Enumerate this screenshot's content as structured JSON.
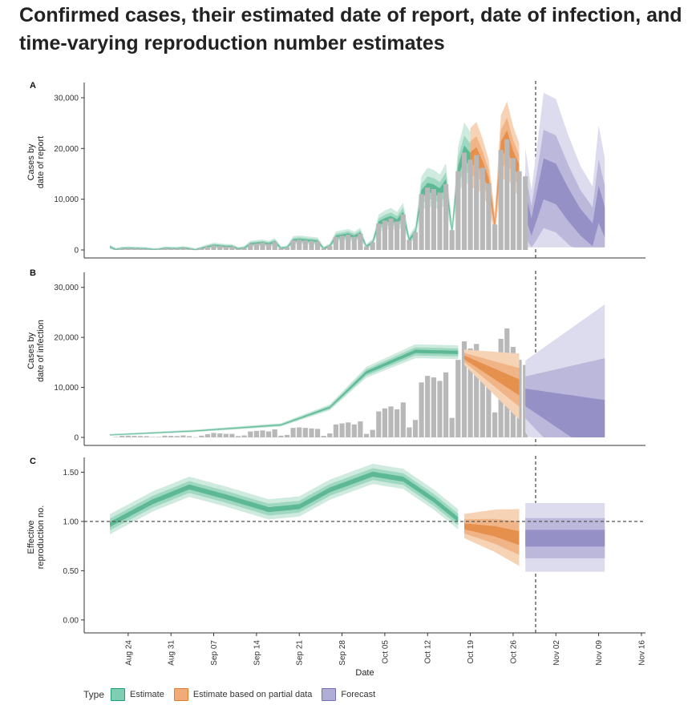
{
  "page": {
    "title": "Confirmed cases, their estimated date of report, date of infection, and time-varying reproduction number estimates"
  },
  "colors": {
    "estimate": "#1b9e77",
    "partial": "#e37b2d",
    "forecast": "#7570b3",
    "bars": "#b8b8b8"
  },
  "legend": {
    "title": "Type",
    "items": [
      {
        "key": "estimate",
        "label": "Estimate"
      },
      {
        "key": "partial",
        "label": "Estimate based on partial data"
      },
      {
        "key": "forecast",
        "label": "Forecast"
      }
    ]
  },
  "chart_data": [
    {
      "id": "A",
      "type": "bar",
      "ylabel": "Cases by date of report",
      "ylim": [
        0,
        33000
      ],
      "yticks": [
        0,
        10000,
        20000,
        30000
      ],
      "ytick_labels": [
        "0",
        "10,000",
        "20,000",
        "30,000"
      ],
      "bars_start_day": 1,
      "bars": [
        100,
        300,
        350,
        300,
        280,
        250,
        100,
        120,
        350,
        300,
        280,
        400,
        250,
        50,
        350,
        650,
        900,
        800,
        700,
        700,
        250,
        400,
        1200,
        1300,
        1400,
        1200,
        1600,
        350,
        500,
        1900,
        2000,
        1900,
        1800,
        1700,
        300,
        800,
        2600,
        2800,
        3000,
        2600,
        3200,
        700,
        1500,
        5200,
        5800,
        6200,
        5600,
        7000,
        2000,
        3500,
        11000,
        12300,
        12000,
        11300,
        13000,
        3900,
        15500,
        19200,
        17800,
        18700,
        16200,
        13100,
        5000,
        19700,
        21800,
        18100,
        15500,
        14500
      ],
      "estimate_band_day_range": [
        0,
        59
      ],
      "partial_band_day_range": [
        59,
        67
      ],
      "forecast_band_day_range": [
        68,
        81
      ]
    },
    {
      "id": "B",
      "type": "area",
      "ylabel": "Cases by date of infection",
      "ylim": [
        0,
        33000
      ],
      "yticks": [
        0,
        10000,
        20000,
        30000
      ],
      "ytick_labels": [
        "0",
        "10,000",
        "20,000",
        "30,000"
      ],
      "estimate_median": [
        [
          0,
          500
        ],
        [
          14,
          1300
        ],
        [
          28,
          2500
        ],
        [
          36,
          6000
        ],
        [
          42,
          13000
        ],
        [
          50,
          17200
        ],
        [
          57,
          17000
        ]
      ],
      "partial_median": [
        [
          58,
          16000
        ],
        [
          67,
          10000
        ]
      ],
      "forecast_median": [
        [
          68,
          8000
        ],
        [
          81,
          1500
        ]
      ],
      "estimate_band_day_range": [
        0,
        57
      ],
      "partial_band_day_range": [
        58,
        67
      ],
      "forecast_band_day_range": [
        68,
        81
      ]
    },
    {
      "id": "C",
      "type": "line",
      "ylabel": "Effective reproduction no.",
      "xlabel": "Date",
      "ylim": [
        -0.05,
        1.65
      ],
      "yticks": [
        0,
        0.5,
        1.0,
        1.5
      ],
      "ytick_labels": [
        "0.00",
        "0.50",
        "1.00",
        "1.50"
      ],
      "reference_line": 1.0,
      "estimate_median": [
        [
          0,
          0.97
        ],
        [
          7,
          1.2
        ],
        [
          13,
          1.35
        ],
        [
          19,
          1.25
        ],
        [
          26,
          1.12
        ],
        [
          31,
          1.15
        ],
        [
          36,
          1.32
        ],
        [
          43,
          1.48
        ],
        [
          48,
          1.43
        ],
        [
          53,
          1.22
        ],
        [
          57,
          1.02
        ]
      ],
      "partial_median": [
        [
          58,
          0.95
        ],
        [
          63,
          0.9
        ],
        [
          67,
          0.83
        ]
      ],
      "forecast_median": [
        [
          68,
          0.83
        ],
        [
          81,
          0.83
        ]
      ],
      "x_tick_labels": [
        "Aug 24",
        "Aug 31",
        "Sep 07",
        "Sep 14",
        "Sep 21",
        "Sep 28",
        "Oct 05",
        "Oct 12",
        "Oct 19",
        "Oct 26",
        "Nov 02",
        "Nov 09",
        "Nov 16"
      ],
      "x_tick_days": [
        3,
        10,
        17,
        24,
        31,
        38,
        45,
        52,
        59,
        66,
        73,
        80,
        87
      ]
    }
  ]
}
